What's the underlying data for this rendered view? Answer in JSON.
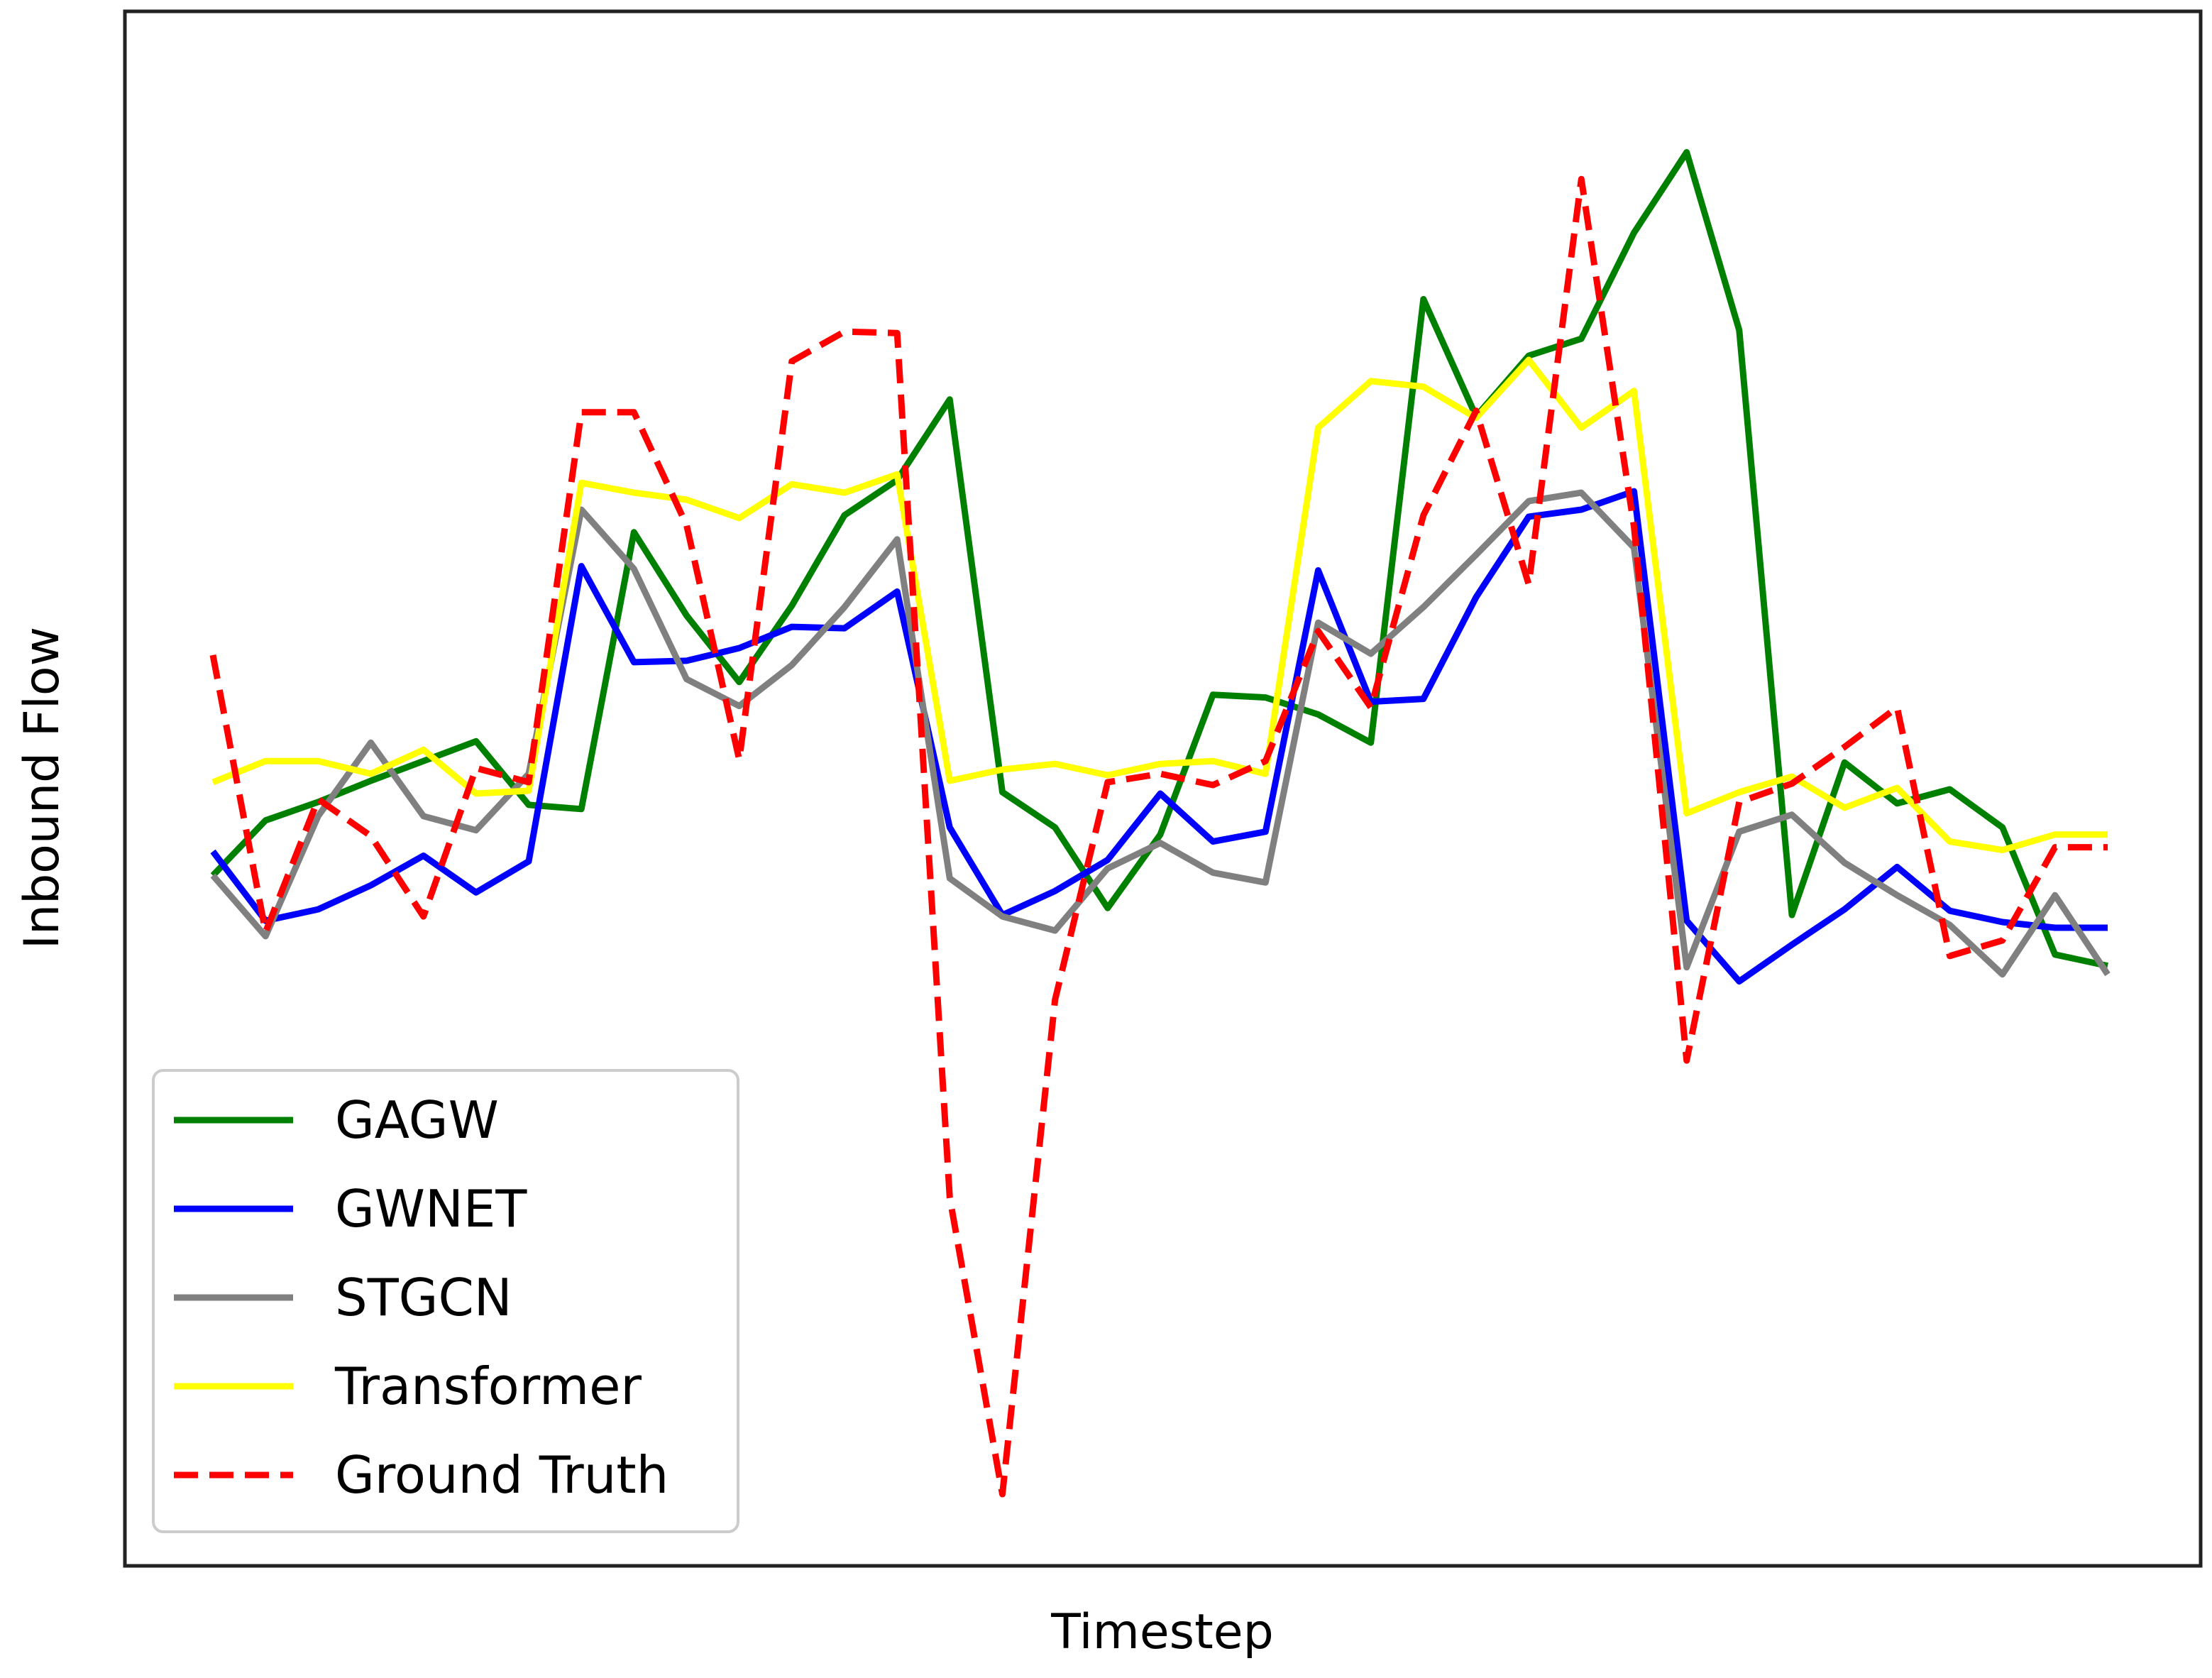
{
  "chart_data": {
    "type": "line",
    "xlabel": "Timestep",
    "ylabel": "Inbound Flow",
    "ylim": [
      0,
      1000
    ],
    "grid": false,
    "legend_position": "lower-left",
    "x_ticks_shown": false,
    "y_ticks_shown": false,
    "series": [
      {
        "name": "GAGW",
        "color": "#008000",
        "dash": "solid",
        "values": [
          438,
          477,
          490,
          505,
          519,
          533,
          488,
          485,
          681,
          622,
          575,
          629,
          693,
          718,
          775,
          497,
          472,
          415,
          467,
          566,
          564,
          552,
          532,
          846,
          763,
          806,
          818,
          893,
          950,
          824,
          410,
          518,
          489,
          499,
          472,
          382,
          374
        ]
      },
      {
        "name": "GWNET",
        "color": "#0000ff",
        "dash": "solid",
        "values": [
          455,
          406,
          414,
          431,
          452,
          426,
          448,
          657,
          589,
          590,
          599,
          614,
          613,
          639,
          472,
          410,
          427,
          449,
          496,
          462,
          469,
          654,
          561,
          563,
          635,
          692,
          697,
          710,
          406,
          363,
          389,
          414,
          444,
          413,
          405,
          401,
          401
        ]
      },
      {
        "name": "STGCN",
        "color": "#808080",
        "dash": "solid",
        "values": [
          438,
          395,
          480,
          532,
          480,
          470,
          510,
          697,
          655,
          577,
          558,
          587,
          628,
          676,
          436,
          409,
          399,
          443,
          461,
          440,
          433,
          617,
          595,
          628,
          665,
          703,
          709,
          670,
          373,
          469,
          481,
          447,
          424,
          403,
          368,
          424,
          368
        ]
      },
      {
        "name": "Transformer",
        "color": "#ffff00",
        "dash": "solid",
        "values": [
          504,
          519,
          519,
          510,
          527,
          496,
          498,
          716,
          709,
          704,
          691,
          715,
          709,
          722,
          505,
          513,
          517,
          509,
          517,
          519,
          510,
          755,
          788,
          784,
          762,
          803,
          755,
          781,
          482,
          497,
          508,
          486,
          500,
          462,
          456,
          467,
          467
        ]
      },
      {
        "name": "Ground Truth",
        "color": "#ff0000",
        "dash": "dashed",
        "values": [
          594,
          398,
          492,
          466,
          409,
          514,
          504,
          766,
          766,
          686,
          520,
          802,
          823,
          822,
          210,
          0,
          350,
          504,
          510,
          502,
          519,
          611,
          557,
          693,
          767,
          644,
          931,
          685,
          307,
          490,
          503,
          529,
          557,
          381,
          392,
          458,
          458
        ]
      }
    ]
  }
}
